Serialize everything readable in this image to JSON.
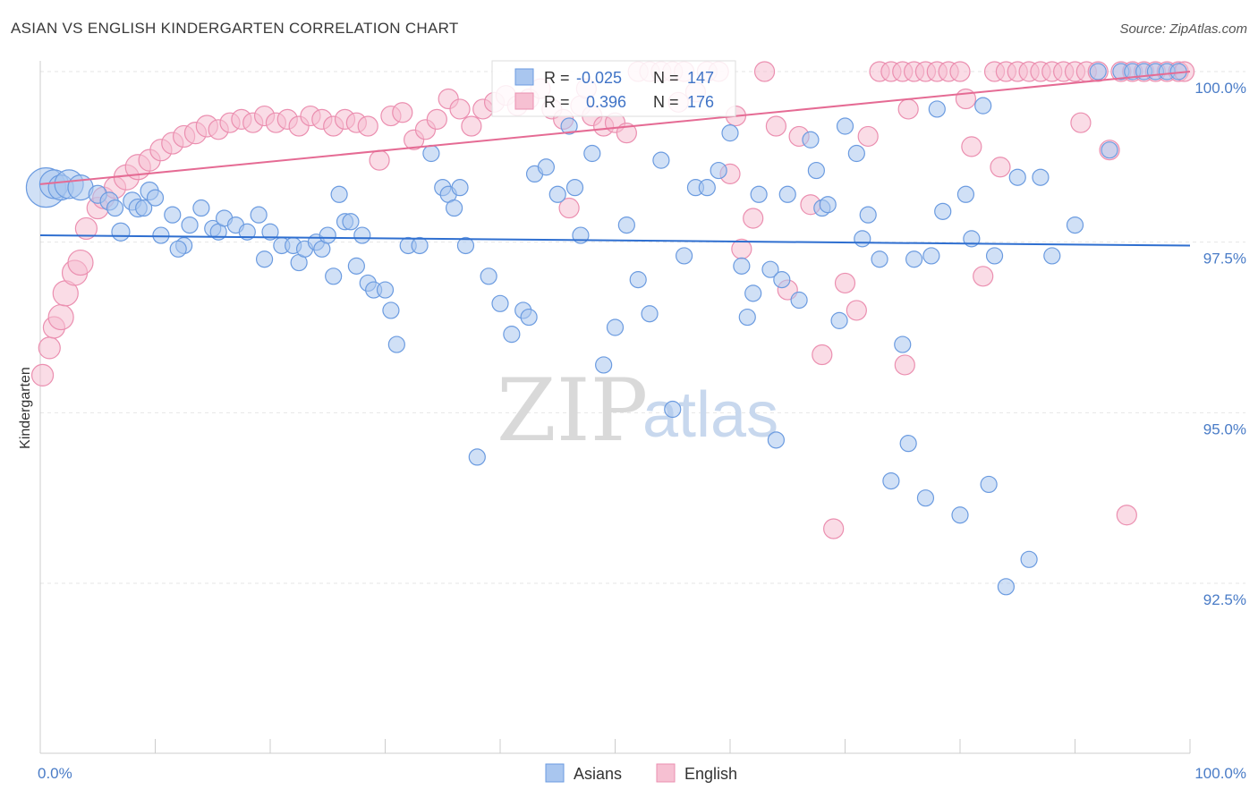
{
  "title": "ASIAN VS ENGLISH KINDERGARTEN CORRELATION CHART",
  "source": "Source: ZipAtlas.com",
  "watermark": {
    "zip": "ZIP",
    "atlas": "atlas"
  },
  "chart_data": {
    "type": "scatter",
    "title": "ASIAN VS ENGLISH KINDERGARTEN CORRELATION CHART",
    "xlabel": "",
    "ylabel": "Kindergarten",
    "xlim": [
      0,
      100
    ],
    "ylim": [
      90.5,
      100.25
    ],
    "x_tick_labels": [
      {
        "value": 0,
        "label": "0.0%"
      },
      {
        "value": 100,
        "label": "100.0%"
      }
    ],
    "y_ticks": [
      {
        "value": 100.0,
        "label": "100.0%"
      },
      {
        "value": 97.5,
        "label": "97.5%"
      },
      {
        "value": 95.0,
        "label": "95.0%"
      },
      {
        "value": 92.5,
        "label": "92.5%"
      }
    ],
    "grid": true,
    "legend_position": "bottom-center",
    "series": [
      {
        "name": "Asians",
        "color": "#6b9be0",
        "fill": "#a9c6ef",
        "R": "-0.025",
        "N": "147",
        "trend": [
          [
            0,
            97.6
          ],
          [
            100,
            97.45
          ]
        ],
        "points": [
          [
            0.5,
            98.3,
            22
          ],
          [
            1.2,
            98.35,
            16
          ],
          [
            1.8,
            98.3,
            14
          ],
          [
            2.5,
            98.35,
            16
          ],
          [
            3.5,
            98.3,
            14
          ],
          [
            5,
            98.2,
            10
          ],
          [
            6,
            98.1,
            10
          ],
          [
            6.5,
            98.0,
            9
          ],
          [
            7,
            97.65,
            10
          ],
          [
            8,
            98.1,
            10
          ],
          [
            8.5,
            98.0,
            10
          ],
          [
            9,
            98.0,
            9
          ],
          [
            9.5,
            98.25,
            10
          ],
          [
            10,
            98.15,
            9
          ],
          [
            10.5,
            97.6,
            9
          ],
          [
            11.5,
            97.9,
            9
          ],
          [
            12.5,
            97.45,
            9
          ],
          [
            12,
            97.4,
            9
          ],
          [
            13,
            97.75,
            9
          ],
          [
            14,
            98.0,
            9
          ],
          [
            15,
            97.7,
            9
          ],
          [
            15.5,
            97.65,
            9
          ],
          [
            16,
            97.85,
            9
          ],
          [
            17,
            97.75,
            9
          ],
          [
            18,
            97.65,
            9
          ],
          [
            19,
            97.9,
            9
          ],
          [
            19.5,
            97.25,
            9
          ],
          [
            20,
            97.65,
            9
          ],
          [
            21,
            97.45,
            9
          ],
          [
            22,
            97.45,
            9
          ],
          [
            22.5,
            97.2,
            9
          ],
          [
            23,
            97.4,
            9
          ],
          [
            24,
            97.5,
            9
          ],
          [
            24.5,
            97.4,
            9
          ],
          [
            25,
            97.6,
            9
          ],
          [
            25.5,
            97.0,
            9
          ],
          [
            26,
            98.2,
            9
          ],
          [
            26.5,
            97.8,
            9
          ],
          [
            27,
            97.8,
            9
          ],
          [
            27.5,
            97.15,
            9
          ],
          [
            28,
            97.6,
            9
          ],
          [
            28.5,
            96.9,
            9
          ],
          [
            29,
            96.8,
            9
          ],
          [
            30,
            96.8,
            9
          ],
          [
            30.5,
            96.5,
            9
          ],
          [
            31,
            96.0,
            9
          ],
          [
            32,
            97.45,
            9
          ],
          [
            33,
            97.45,
            9
          ],
          [
            34,
            98.8,
            9
          ],
          [
            35,
            98.3,
            9
          ],
          [
            35.5,
            98.2,
            9
          ],
          [
            36,
            98.0,
            9
          ],
          [
            36.5,
            98.3,
            9
          ],
          [
            37,
            97.45,
            9
          ],
          [
            38,
            94.35,
            9
          ],
          [
            39,
            97.0,
            9
          ],
          [
            40,
            96.6,
            9
          ],
          [
            41,
            96.15,
            9
          ],
          [
            42,
            96.5,
            9
          ],
          [
            42.5,
            96.4,
            9
          ],
          [
            43,
            98.5,
            9
          ],
          [
            44,
            98.6,
            9
          ],
          [
            45,
            98.2,
            9
          ],
          [
            46,
            99.2,
            9
          ],
          [
            46.5,
            98.3,
            9
          ],
          [
            47,
            97.6,
            9
          ],
          [
            48,
            98.8,
            9
          ],
          [
            49,
            95.7,
            9
          ],
          [
            50,
            96.25,
            9
          ],
          [
            51,
            97.75,
            9
          ],
          [
            52,
            96.95,
            9
          ],
          [
            53,
            96.45,
            9
          ],
          [
            54,
            98.7,
            9
          ],
          [
            55,
            95.05,
            9
          ],
          [
            56,
            97.3,
            9
          ],
          [
            57,
            98.3,
            9
          ],
          [
            58,
            98.3,
            9
          ],
          [
            59,
            98.55,
            9
          ],
          [
            60,
            99.1,
            9
          ],
          [
            61,
            97.15,
            9
          ],
          [
            61.5,
            96.4,
            9
          ],
          [
            62,
            96.75,
            9
          ],
          [
            62.5,
            98.2,
            9
          ],
          [
            63.5,
            97.1,
            9
          ],
          [
            64,
            94.6,
            9
          ],
          [
            64.5,
            96.95,
            9
          ],
          [
            65,
            98.2,
            9
          ],
          [
            66,
            96.65,
            9
          ],
          [
            67,
            99.0,
            9
          ],
          [
            67.5,
            98.55,
            9
          ],
          [
            68,
            98.0,
            9
          ],
          [
            68.5,
            98.05,
            9
          ],
          [
            69.5,
            96.35,
            9
          ],
          [
            70,
            99.2,
            9
          ],
          [
            71,
            98.8,
            9
          ],
          [
            71.5,
            97.55,
            9
          ],
          [
            72,
            97.9,
            9
          ],
          [
            73,
            97.25,
            9
          ],
          [
            74,
            94.0,
            9
          ],
          [
            75,
            96.0,
            9
          ],
          [
            75.5,
            94.55,
            9
          ],
          [
            76,
            97.25,
            9
          ],
          [
            77,
            93.75,
            9
          ],
          [
            77.5,
            97.3,
            9
          ],
          [
            78,
            99.45,
            9
          ],
          [
            78.5,
            97.95,
            9
          ],
          [
            80,
            93.5,
            9
          ],
          [
            80.5,
            98.2,
            9
          ],
          [
            81,
            97.55,
            9
          ],
          [
            82,
            99.5,
            9
          ],
          [
            82.5,
            93.95,
            9
          ],
          [
            83,
            97.3,
            9
          ],
          [
            84,
            92.45,
            9
          ],
          [
            85,
            98.45,
            9
          ],
          [
            86,
            92.85,
            9
          ],
          [
            87,
            98.45,
            9
          ],
          [
            88,
            97.3,
            9
          ],
          [
            90,
            97.75,
            9
          ],
          [
            92,
            100.0,
            9
          ],
          [
            93,
            98.85,
            9
          ],
          [
            94,
            100.0,
            9
          ],
          [
            95,
            100.0,
            9
          ],
          [
            96,
            100.0,
            9
          ],
          [
            97,
            100.0,
            9
          ],
          [
            98,
            100.0,
            9
          ],
          [
            99,
            100.0,
            9
          ]
        ]
      },
      {
        "name": "English",
        "color": "#eb8fb0",
        "fill": "#f6c0d2",
        "R": "0.396",
        "N": "176",
        "trend": [
          [
            0,
            98.35
          ],
          [
            100,
            100.0
          ]
        ],
        "points": [
          [
            0.2,
            95.55,
            12
          ],
          [
            0.8,
            95.95,
            12
          ],
          [
            1.2,
            96.25,
            12
          ],
          [
            1.8,
            96.4,
            14
          ],
          [
            2.2,
            96.75,
            14
          ],
          [
            3,
            97.05,
            14
          ],
          [
            3.5,
            97.2,
            14
          ],
          [
            4,
            97.7,
            12
          ],
          [
            5,
            98.0,
            12
          ],
          [
            5.5,
            98.15,
            12
          ],
          [
            6.5,
            98.3,
            12
          ],
          [
            7.5,
            98.45,
            14
          ],
          [
            8.5,
            98.6,
            14
          ],
          [
            9.5,
            98.7,
            12
          ],
          [
            10.5,
            98.85,
            12
          ],
          [
            11.5,
            98.95,
            12
          ],
          [
            12.5,
            99.05,
            12
          ],
          [
            13.5,
            99.1,
            12
          ],
          [
            14.5,
            99.2,
            12
          ],
          [
            15.5,
            99.15,
            11
          ],
          [
            16.5,
            99.25,
            11
          ],
          [
            17.5,
            99.3,
            11
          ],
          [
            18.5,
            99.25,
            11
          ],
          [
            19.5,
            99.35,
            11
          ],
          [
            20.5,
            99.25,
            11
          ],
          [
            21.5,
            99.3,
            11
          ],
          [
            22.5,
            99.2,
            11
          ],
          [
            23.5,
            99.35,
            11
          ],
          [
            24.5,
            99.3,
            11
          ],
          [
            25.5,
            99.2,
            11
          ],
          [
            26.5,
            99.3,
            11
          ],
          [
            27.5,
            99.25,
            11
          ],
          [
            28.5,
            99.2,
            11
          ],
          [
            29.5,
            98.7,
            11
          ],
          [
            30.5,
            99.35,
            11
          ],
          [
            31.5,
            99.4,
            11
          ],
          [
            32.5,
            99.0,
            11
          ],
          [
            33.5,
            99.15,
            11
          ],
          [
            34.5,
            99.3,
            11
          ],
          [
            35.5,
            99.6,
            11
          ],
          [
            36.5,
            99.45,
            11
          ],
          [
            37.5,
            99.2,
            11
          ],
          [
            38.5,
            99.45,
            11
          ],
          [
            39.5,
            99.55,
            11
          ],
          [
            40.5,
            99.65,
            11
          ],
          [
            41.5,
            99.5,
            11
          ],
          [
            42.5,
            99.6,
            11
          ],
          [
            43.5,
            99.75,
            11
          ],
          [
            44.5,
            99.45,
            11
          ],
          [
            45.5,
            99.3,
            11
          ],
          [
            46,
            98.0,
            11
          ],
          [
            47,
            99.5,
            11
          ],
          [
            48,
            99.35,
            11
          ],
          [
            49,
            99.2,
            11
          ],
          [
            50,
            99.25,
            11
          ],
          [
            51,
            99.1,
            11
          ],
          [
            52,
            100.0,
            11
          ],
          [
            53,
            100.0,
            11
          ],
          [
            54,
            100.0,
            11
          ],
          [
            55,
            100.0,
            11
          ],
          [
            56,
            100.0,
            11
          ],
          [
            57,
            99.7,
            11
          ],
          [
            58,
            100.0,
            11
          ],
          [
            59,
            100.0,
            11
          ],
          [
            60,
            98.5,
            11
          ],
          [
            61,
            97.4,
            11
          ],
          [
            62,
            97.85,
            11
          ],
          [
            63,
            100.0,
            11
          ],
          [
            64,
            99.2,
            11
          ],
          [
            65,
            96.8,
            11
          ],
          [
            66,
            99.05,
            11
          ],
          [
            67,
            98.05,
            11
          ],
          [
            68,
            95.85,
            11
          ],
          [
            69,
            93.3,
            11
          ],
          [
            70,
            96.9,
            11
          ],
          [
            71,
            96.5,
            11
          ],
          [
            72,
            99.05,
            11
          ],
          [
            73,
            100.0,
            11
          ],
          [
            74,
            100.0,
            11
          ],
          [
            75,
            100.0,
            11
          ],
          [
            76,
            100.0,
            11
          ],
          [
            77,
            100.0,
            11
          ],
          [
            78,
            100.0,
            11
          ],
          [
            79,
            100.0,
            11
          ],
          [
            80,
            100.0,
            11
          ],
          [
            81,
            98.9,
            11
          ],
          [
            82,
            97.0,
            11
          ],
          [
            83,
            100.0,
            11
          ],
          [
            84,
            100.0,
            11
          ],
          [
            85,
            100.0,
            11
          ],
          [
            86,
            100.0,
            11
          ],
          [
            87,
            100.0,
            11
          ],
          [
            88,
            100.0,
            11
          ],
          [
            89,
            100.0,
            11
          ],
          [
            90,
            100.0,
            11
          ],
          [
            91,
            100.0,
            11
          ],
          [
            92,
            100.0,
            11
          ],
          [
            93,
            98.85,
            11
          ],
          [
            94,
            100.0,
            11
          ],
          [
            95,
            100.0,
            11
          ],
          [
            96,
            100.0,
            11
          ],
          [
            97,
            100.0,
            11
          ],
          [
            98,
            100.0,
            11
          ],
          [
            99,
            100.0,
            11
          ],
          [
            99.5,
            100.0,
            11
          ],
          [
            75.5,
            99.45,
            11
          ],
          [
            80.5,
            99.6,
            11
          ],
          [
            83.5,
            98.6,
            11
          ],
          [
            90.5,
            99.25,
            11
          ],
          [
            75.2,
            95.7,
            11
          ],
          [
            94.5,
            93.5,
            11
          ],
          [
            47.5,
            99.75,
            11
          ],
          [
            55.5,
            99.55,
            11
          ],
          [
            60.5,
            99.35,
            11
          ]
        ]
      }
    ]
  },
  "legend": {
    "items": [
      {
        "label": "Asians",
        "color": "#a9c6ef",
        "border": "#6b9be0"
      },
      {
        "label": "English",
        "color": "#f6c0d2",
        "border": "#eb8fb0"
      }
    ]
  },
  "stats": {
    "r_label": "R =",
    "n_label": "N =",
    "asians": {
      "r": "-0.025",
      "n": "147"
    },
    "english": {
      "r": "0.396",
      "n": "176"
    }
  }
}
